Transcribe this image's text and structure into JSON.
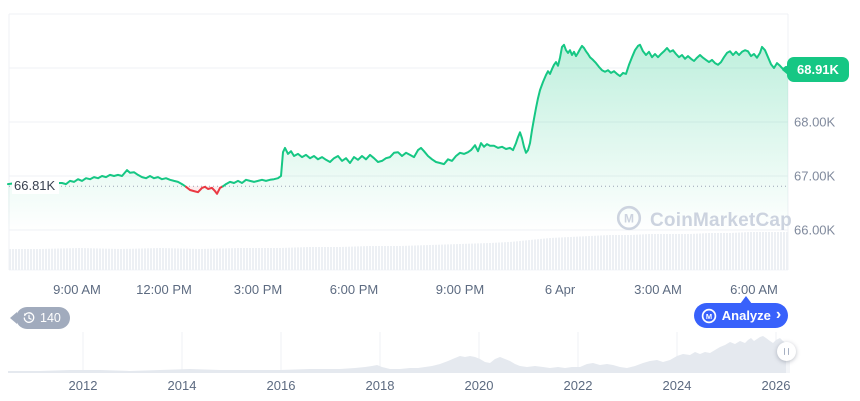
{
  "ui": {
    "history_badge_count": "140",
    "analyze_label": "Analyze",
    "analyze_chevron": "›",
    "watermark_text": "CoinMarketCap",
    "baseline_label": "66.81K",
    "last_price_label": "68.91K"
  },
  "icons": {
    "history": "clock-history-icon",
    "analyze_logo": "cmc-m-logo-icon",
    "watermark_logo": "cmc-m-logo-icon",
    "handle": "drag-handle-pause-icon",
    "chevron": "chevron-right-icon"
  },
  "colors": {
    "up": "#16c784",
    "down": "#ea3943",
    "accent_blue": "#3861fb",
    "grid": "#eff1f5",
    "dotted_baseline": "#9aa4b5",
    "volume_fill": "#edf0f4",
    "mini_fill": "#e5e9ef",
    "axis_text": "#808a9d",
    "badge_gray": "#a1abbd",
    "watermark": "#ccd3df"
  },
  "chart_data": {
    "type": "line",
    "title": "BTC price intraday with all-time range selector",
    "main": {
      "unit": "USD thousands",
      "baseline": {
        "label": "66.81K",
        "value": 66.81
      },
      "last_price": {
        "label": "68.91K",
        "value": 68.91
      },
      "ylim": [
        65.9,
        70.0
      ],
      "y_ticks": [
        {
          "label": "68.00K",
          "value": 68
        },
        {
          "label": "67.00K",
          "value": 67
        },
        {
          "label": "66.00K",
          "value": 66
        }
      ],
      "x_tick_labels": [
        "9:00 AM",
        "12:00 PM",
        "3:00 PM",
        "6:00 PM",
        "9:00 PM",
        "6 Apr",
        "3:00 AM",
        "6:00 AM"
      ],
      "grid": true,
      "points": [
        [
          8,
          66.85
        ],
        [
          16,
          66.87
        ],
        [
          24,
          66.85
        ],
        [
          32,
          66.87
        ],
        [
          40,
          66.85
        ],
        [
          48,
          66.85
        ],
        [
          56,
          66.87
        ],
        [
          62,
          66.87
        ],
        [
          66,
          66.85
        ],
        [
          70,
          66.91
        ],
        [
          74,
          66.89
        ],
        [
          78,
          66.94
        ],
        [
          82,
          66.91
        ],
        [
          86,
          66.96
        ],
        [
          90,
          66.94
        ],
        [
          94,
          66.98
        ],
        [
          98,
          66.96
        ],
        [
          102,
          67.0
        ],
        [
          106,
          66.98
        ],
        [
          110,
          67.02
        ],
        [
          114,
          67.0
        ],
        [
          118,
          67.02
        ],
        [
          122,
          67.0
        ],
        [
          127,
          67.11
        ],
        [
          130,
          67.06
        ],
        [
          134,
          67.07
        ],
        [
          138,
          67.02
        ],
        [
          142,
          66.98
        ],
        [
          146,
          66.96
        ],
        [
          150,
          67.0
        ],
        [
          154,
          66.96
        ],
        [
          158,
          66.98
        ],
        [
          162,
          66.94
        ],
        [
          166,
          66.96
        ],
        [
          170,
          66.93
        ],
        [
          174,
          66.91
        ],
        [
          178,
          66.89
        ],
        [
          182,
          66.85
        ],
        [
          186,
          66.8
        ],
        [
          190,
          66.74
        ],
        [
          194,
          66.72
        ],
        [
          198,
          66.7
        ],
        [
          202,
          66.78
        ],
        [
          205,
          66.8
        ],
        [
          208,
          66.76
        ],
        [
          212,
          66.78
        ],
        [
          215,
          66.72
        ],
        [
          217,
          66.67
        ],
        [
          220,
          66.78
        ],
        [
          223,
          66.81
        ],
        [
          226,
          66.85
        ],
        [
          230,
          66.89
        ],
        [
          234,
          66.87
        ],
        [
          238,
          66.91
        ],
        [
          242,
          66.87
        ],
        [
          246,
          66.93
        ],
        [
          250,
          66.91
        ],
        [
          254,
          66.89
        ],
        [
          258,
          66.91
        ],
        [
          262,
          66.93
        ],
        [
          266,
          66.91
        ],
        [
          270,
          66.93
        ],
        [
          274,
          66.94
        ],
        [
          278,
          66.96
        ],
        [
          281,
          67.0
        ],
        [
          283,
          67.44
        ],
        [
          285,
          67.52
        ],
        [
          288,
          67.41
        ],
        [
          291,
          67.46
        ],
        [
          294,
          67.37
        ],
        [
          298,
          67.41
        ],
        [
          302,
          67.35
        ],
        [
          306,
          67.39
        ],
        [
          310,
          67.33
        ],
        [
          314,
          67.37
        ],
        [
          318,
          67.31
        ],
        [
          322,
          67.35
        ],
        [
          326,
          67.3
        ],
        [
          330,
          67.26
        ],
        [
          334,
          67.33
        ],
        [
          338,
          67.37
        ],
        [
          342,
          67.28
        ],
        [
          346,
          67.33
        ],
        [
          350,
          67.24
        ],
        [
          354,
          67.35
        ],
        [
          358,
          67.3
        ],
        [
          362,
          67.37
        ],
        [
          366,
          67.31
        ],
        [
          370,
          67.39
        ],
        [
          374,
          67.33
        ],
        [
          378,
          67.26
        ],
        [
          382,
          67.28
        ],
        [
          386,
          67.33
        ],
        [
          390,
          67.35
        ],
        [
          394,
          67.43
        ],
        [
          398,
          67.44
        ],
        [
          402,
          67.37
        ],
        [
          406,
          67.43
        ],
        [
          410,
          67.39
        ],
        [
          414,
          67.35
        ],
        [
          418,
          67.48
        ],
        [
          421,
          67.52
        ],
        [
          424,
          67.46
        ],
        [
          428,
          67.37
        ],
        [
          432,
          67.31
        ],
        [
          436,
          67.26
        ],
        [
          440,
          67.24
        ],
        [
          444,
          67.22
        ],
        [
          448,
          67.31
        ],
        [
          452,
          67.28
        ],
        [
          456,
          67.37
        ],
        [
          460,
          67.43
        ],
        [
          464,
          67.41
        ],
        [
          468,
          67.44
        ],
        [
          471,
          67.48
        ],
        [
          475,
          67.57
        ],
        [
          478,
          67.46
        ],
        [
          481,
          67.61
        ],
        [
          484,
          67.54
        ],
        [
          487,
          67.59
        ],
        [
          490,
          67.56
        ],
        [
          494,
          67.56
        ],
        [
          498,
          67.52
        ],
        [
          502,
          67.54
        ],
        [
          506,
          67.5
        ],
        [
          510,
          67.52
        ],
        [
          513,
          67.48
        ],
        [
          516,
          67.61
        ],
        [
          518,
          67.72
        ],
        [
          520,
          67.81
        ],
        [
          522,
          67.7
        ],
        [
          524,
          67.54
        ],
        [
          526,
          67.43
        ],
        [
          528,
          67.48
        ],
        [
          530,
          67.61
        ],
        [
          532,
          67.85
        ],
        [
          534,
          68.06
        ],
        [
          536,
          68.26
        ],
        [
          538,
          68.44
        ],
        [
          540,
          68.59
        ],
        [
          543,
          68.74
        ],
        [
          546,
          68.87
        ],
        [
          548,
          68.94
        ],
        [
          550,
          68.89
        ],
        [
          552,
          68.98
        ],
        [
          554,
          69.06
        ],
        [
          556,
          69.11
        ],
        [
          558,
          69.04
        ],
        [
          560,
          69.19
        ],
        [
          562,
          69.39
        ],
        [
          564,
          69.43
        ],
        [
          566,
          69.33
        ],
        [
          568,
          69.28
        ],
        [
          570,
          69.33
        ],
        [
          572,
          69.24
        ],
        [
          574,
          69.3
        ],
        [
          576,
          69.22
        ],
        [
          578,
          69.28
        ],
        [
          580,
          69.35
        ],
        [
          582,
          69.41
        ],
        [
          584,
          69.37
        ],
        [
          586,
          69.31
        ],
        [
          588,
          69.26
        ],
        [
          590,
          69.2
        ],
        [
          593,
          69.15
        ],
        [
          596,
          69.09
        ],
        [
          599,
          69.02
        ],
        [
          602,
          68.96
        ],
        [
          605,
          68.93
        ],
        [
          608,
          68.96
        ],
        [
          611,
          68.91
        ],
        [
          614,
          68.94
        ],
        [
          617,
          68.89
        ],
        [
          620,
          68.85
        ],
        [
          623,
          68.91
        ],
        [
          626,
          68.89
        ],
        [
          629,
          69.06
        ],
        [
          632,
          69.2
        ],
        [
          635,
          69.33
        ],
        [
          638,
          69.41
        ],
        [
          640,
          69.43
        ],
        [
          643,
          69.31
        ],
        [
          646,
          69.24
        ],
        [
          649,
          69.3
        ],
        [
          652,
          69.2
        ],
        [
          655,
          69.26
        ],
        [
          658,
          69.2
        ],
        [
          661,
          69.26
        ],
        [
          664,
          69.31
        ],
        [
          667,
          69.37
        ],
        [
          670,
          69.3
        ],
        [
          673,
          69.33
        ],
        [
          676,
          69.26
        ],
        [
          679,
          69.2
        ],
        [
          682,
          69.24
        ],
        [
          685,
          69.17
        ],
        [
          688,
          69.22
        ],
        [
          691,
          69.17
        ],
        [
          694,
          69.13
        ],
        [
          697,
          69.19
        ],
        [
          700,
          69.24
        ],
        [
          703,
          69.19
        ],
        [
          706,
          69.15
        ],
        [
          709,
          69.11
        ],
        [
          712,
          69.15
        ],
        [
          715,
          69.09
        ],
        [
          718,
          69.06
        ],
        [
          721,
          69.11
        ],
        [
          724,
          69.2
        ],
        [
          727,
          69.28
        ],
        [
          730,
          69.31
        ],
        [
          733,
          69.24
        ],
        [
          736,
          69.3
        ],
        [
          739,
          69.24
        ],
        [
          742,
          69.3
        ],
        [
          745,
          69.33
        ],
        [
          748,
          69.31
        ],
        [
          751,
          69.22
        ],
        [
          754,
          69.26
        ],
        [
          757,
          69.19
        ],
        [
          760,
          69.28
        ],
        [
          762,
          69.39
        ],
        [
          765,
          69.33
        ],
        [
          768,
          69.2
        ],
        [
          771,
          69.07
        ],
        [
          774,
          69.0
        ],
        [
          777,
          69.09
        ],
        [
          780,
          69.04
        ],
        [
          783,
          68.98
        ],
        [
          786,
          69.02
        ],
        [
          788,
          68.91
        ]
      ]
    },
    "volume": {
      "note": "light gray volume bars along bottom of main chart, heights in px above baseline",
      "profile": [
        [
          9,
          21
        ],
        [
          40,
          21
        ],
        [
          80,
          22
        ],
        [
          120,
          21
        ],
        [
          160,
          22
        ],
        [
          200,
          21
        ],
        [
          240,
          22
        ],
        [
          280,
          22
        ],
        [
          310,
          23
        ],
        [
          340,
          23
        ],
        [
          370,
          24
        ],
        [
          400,
          24
        ],
        [
          430,
          25
        ],
        [
          460,
          26
        ],
        [
          490,
          27
        ],
        [
          510,
          28
        ],
        [
          530,
          30
        ],
        [
          550,
          32
        ],
        [
          570,
          33
        ],
        [
          590,
          34
        ],
        [
          610,
          35
        ],
        [
          630,
          35
        ],
        [
          650,
          36
        ],
        [
          670,
          36
        ],
        [
          690,
          36
        ],
        [
          710,
          37
        ],
        [
          730,
          37
        ],
        [
          750,
          38
        ],
        [
          770,
          38
        ],
        [
          788,
          38
        ]
      ]
    },
    "mini": {
      "type": "area",
      "note": "all-time range selector, heights in px above baseline",
      "x_tick_labels": [
        "2012",
        "2014",
        "2016",
        "2018",
        "2020",
        "2022",
        "2024",
        "2026"
      ],
      "points": [
        [
          8,
          2
        ],
        [
          40,
          2
        ],
        [
          70,
          3
        ],
        [
          100,
          3
        ],
        [
          130,
          2
        ],
        [
          160,
          3
        ],
        [
          190,
          4
        ],
        [
          220,
          3
        ],
        [
          250,
          3
        ],
        [
          280,
          3
        ],
        [
          310,
          4
        ],
        [
          340,
          4
        ],
        [
          355,
          5
        ],
        [
          365,
          6
        ],
        [
          372,
          7
        ],
        [
          377,
          8
        ],
        [
          382,
          6
        ],
        [
          390,
          4
        ],
        [
          400,
          4
        ],
        [
          410,
          5
        ],
        [
          418,
          5
        ],
        [
          425,
          6
        ],
        [
          432,
          7
        ],
        [
          440,
          9
        ],
        [
          448,
          12
        ],
        [
          455,
          15
        ],
        [
          460,
          17
        ],
        [
          465,
          16
        ],
        [
          470,
          17
        ],
        [
          475,
          16
        ],
        [
          480,
          14
        ],
        [
          485,
          11
        ],
        [
          490,
          10
        ],
        [
          495,
          14
        ],
        [
          500,
          16
        ],
        [
          505,
          14
        ],
        [
          510,
          12
        ],
        [
          515,
          9
        ],
        [
          520,
          7
        ],
        [
          527,
          6
        ],
        [
          535,
          7
        ],
        [
          543,
          6
        ],
        [
          550,
          5
        ],
        [
          558,
          6
        ],
        [
          565,
          5
        ],
        [
          572,
          6
        ],
        [
          580,
          6
        ],
        [
          587,
          9
        ],
        [
          593,
          10
        ],
        [
          600,
          8
        ],
        [
          607,
          9
        ],
        [
          613,
          8
        ],
        [
          620,
          6
        ],
        [
          627,
          5
        ],
        [
          635,
          7
        ],
        [
          643,
          10
        ],
        [
          650,
          12
        ],
        [
          657,
          13
        ],
        [
          663,
          11
        ],
        [
          670,
          13
        ],
        [
          677,
          17
        ],
        [
          683,
          19
        ],
        [
          690,
          18
        ],
        [
          695,
          21
        ],
        [
          700,
          19
        ],
        [
          705,
          21
        ],
        [
          710,
          20
        ],
        [
          715,
          23
        ],
        [
          720,
          26
        ],
        [
          725,
          28
        ],
        [
          730,
          31
        ],
        [
          735,
          29
        ],
        [
          740,
          32
        ],
        [
          745,
          30
        ],
        [
          748,
          33
        ],
        [
          751,
          35
        ],
        [
          754,
          32
        ],
        [
          757,
          34
        ],
        [
          760,
          36
        ],
        [
          763,
          37
        ],
        [
          766,
          35
        ],
        [
          770,
          32
        ],
        [
          773,
          30
        ],
        [
          776,
          33
        ],
        [
          780,
          35
        ],
        [
          783,
          32
        ],
        [
          786,
          30
        ],
        [
          790,
          29
        ]
      ]
    }
  }
}
